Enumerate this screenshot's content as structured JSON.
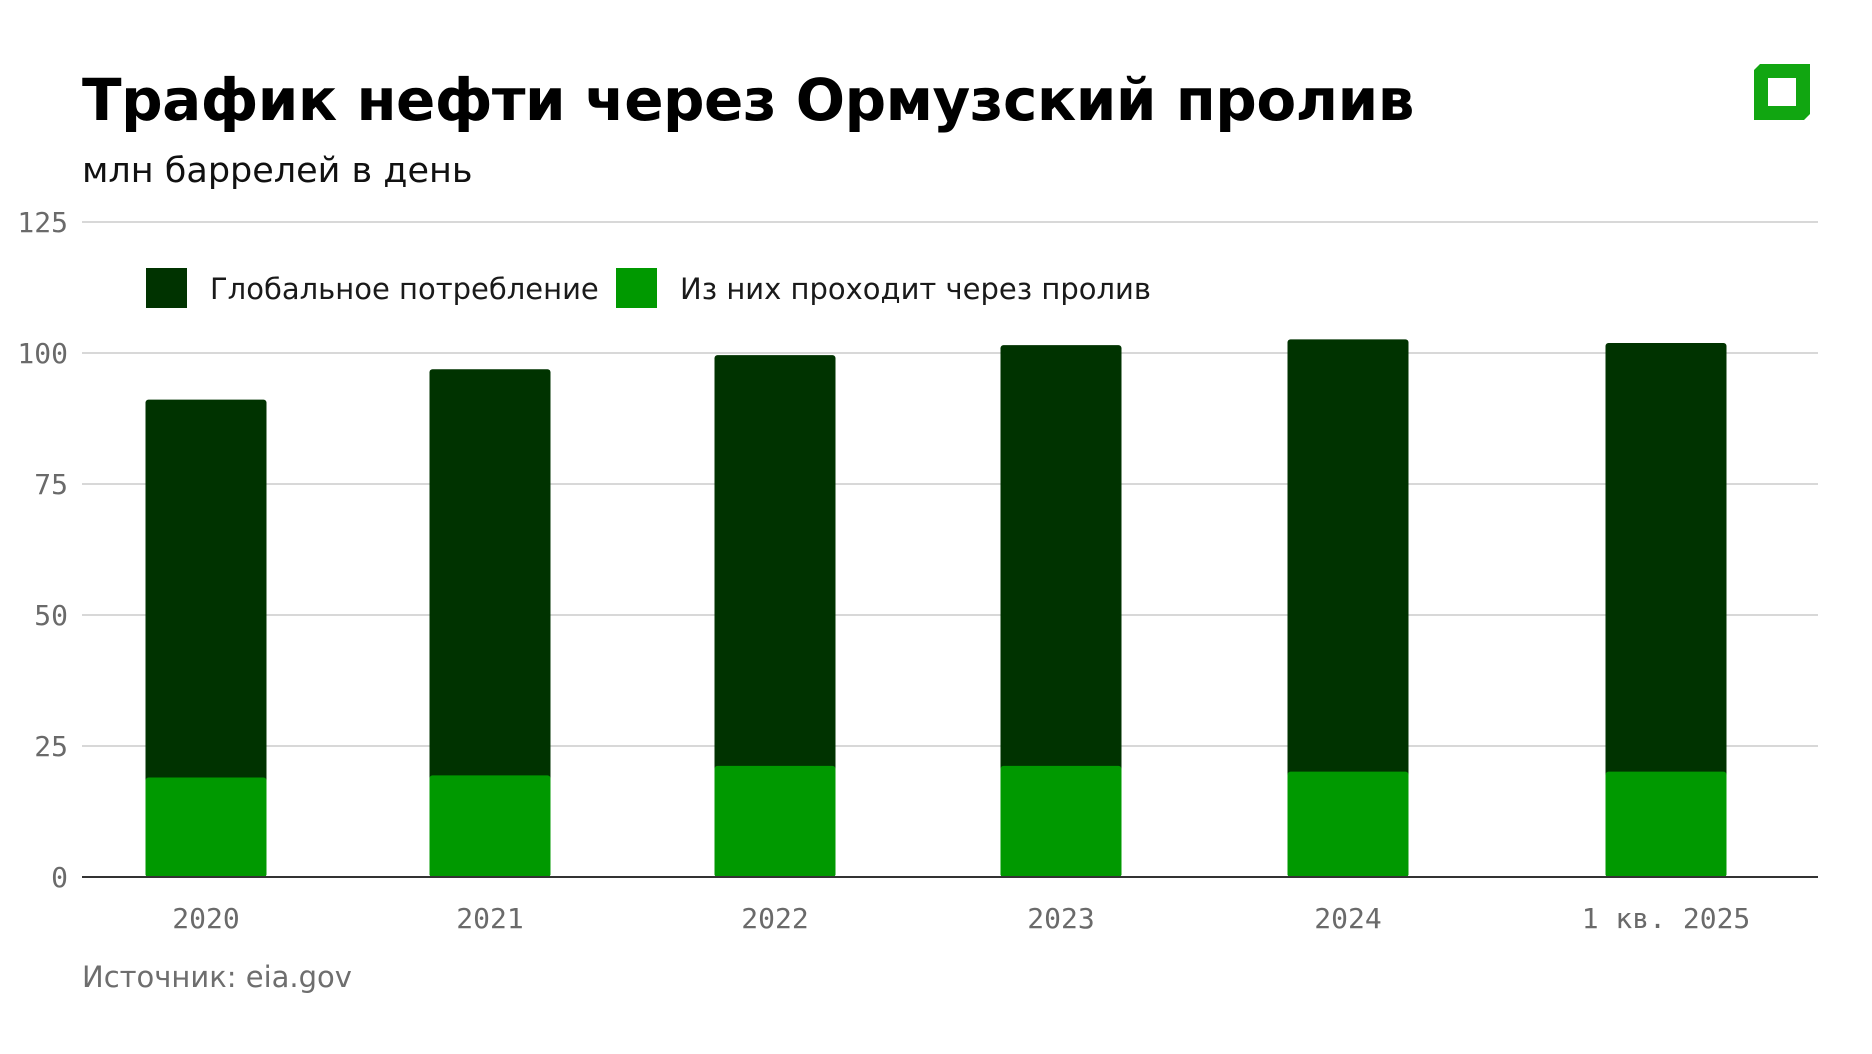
{
  "header": {
    "title": "Трафик нефти через Ормузский пролив",
    "subtitle": "млн баррелей в день",
    "logo_icon": "green-square-logo-icon"
  },
  "footer": {
    "source_label": "Источник:",
    "source_value": "eia.gov"
  },
  "colors": {
    "global": "#003300",
    "strait": "#009900",
    "grid": "#cccccc",
    "axis": "#333333",
    "logo": "#11a611"
  },
  "chart_data": {
    "type": "bar",
    "stacking": "overlaid",
    "categories": [
      "2020",
      "2021",
      "2022",
      "2023",
      "2024",
      "1 кв. 2025"
    ],
    "series": [
      {
        "name": "Глобальное потребление",
        "values": [
          91.1,
          96.9,
          99.6,
          101.5,
          102.6,
          101.9
        ],
        "color": "#003300"
      },
      {
        "name": "Из них проходит через пролив",
        "values": [
          19.0,
          19.4,
          21.2,
          21.2,
          20.1,
          20.1
        ],
        "color": "#009900"
      }
    ],
    "ylim": [
      0,
      125
    ],
    "yticks": [
      "0",
      "25",
      "50",
      "75",
      "100",
      "125"
    ],
    "ytick_values": [
      0,
      25,
      50,
      75,
      100,
      125
    ],
    "grid": true,
    "legend_position": "top-left",
    "xlabel": "",
    "ylabel": ""
  }
}
